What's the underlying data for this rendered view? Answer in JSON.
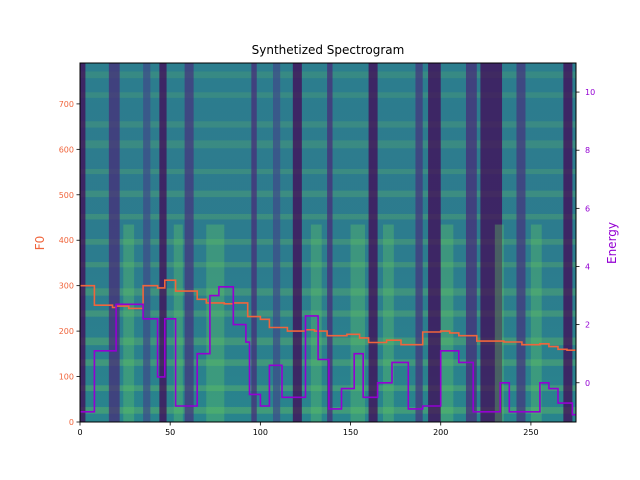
{
  "chart_data": {
    "type": "line",
    "title": "Synthetized Spectrogram",
    "background": "spectrogram heatmap (viridis colormap)",
    "x_axis": {
      "label": "",
      "lim": [
        0,
        275
      ],
      "ticks": [
        0,
        50,
        100,
        150,
        200,
        250
      ]
    },
    "y_axis_left": {
      "label": "F0",
      "color": "#f0653c",
      "lim": [
        0,
        790
      ],
      "ticks": [
        0,
        100,
        200,
        300,
        400,
        500,
        600,
        700
      ]
    },
    "y_axis_right": {
      "label": "Energy",
      "color": "#9400d3",
      "lim": [
        -1.35,
        11
      ],
      "ticks": [
        0,
        2,
        4,
        6,
        8,
        10
      ]
    },
    "grid": false,
    "series": [
      {
        "name": "F0",
        "axis": "left",
        "color": "#f0653c",
        "step": true,
        "x": [
          0,
          8,
          18,
          20,
          27,
          35,
          43,
          47,
          53,
          65,
          70,
          80,
          85,
          93,
          100,
          105,
          115,
          125,
          130,
          137,
          148,
          155,
          160,
          170,
          178,
          190,
          200,
          205,
          210,
          220,
          235,
          245,
          255,
          260,
          265,
          270,
          275
        ],
        "values": [
          300,
          257,
          252,
          255,
          250,
          300,
          295,
          312,
          288,
          270,
          262,
          260,
          262,
          232,
          226,
          208,
          200,
          203,
          200,
          190,
          193,
          185,
          175,
          180,
          170,
          198,
          200,
          196,
          190,
          178,
          176,
          170,
          172,
          166,
          160,
          158,
          158
        ]
      },
      {
        "name": "Energy",
        "axis": "right",
        "color": "#9400d3",
        "step": true,
        "x": [
          0,
          8,
          20,
          35,
          43,
          47,
          53,
          65,
          72,
          77,
          85,
          92,
          94,
          100,
          105,
          112,
          125,
          132,
          138,
          145,
          152,
          157,
          165,
          173,
          182,
          190,
          200,
          210,
          218,
          233,
          238,
          245,
          255,
          260,
          265,
          273,
          275
        ],
        "values": [
          -1.0,
          1.1,
          2.7,
          2.2,
          0.2,
          2.2,
          -0.8,
          1.0,
          3.0,
          3.3,
          2.0,
          1.4,
          -0.4,
          -0.8,
          0.6,
          -0.5,
          2.3,
          0.8,
          -0.9,
          -0.2,
          1.0,
          -0.5,
          0.0,
          0.7,
          -0.9,
          -0.8,
          1.1,
          0.7,
          -1.0,
          0.0,
          -1.0,
          -1.0,
          0.0,
          -0.2,
          -0.7,
          -1.1,
          -1.1
        ]
      }
    ],
    "colors": {
      "f0": "#f0653c",
      "energy": "#9400d3"
    }
  }
}
